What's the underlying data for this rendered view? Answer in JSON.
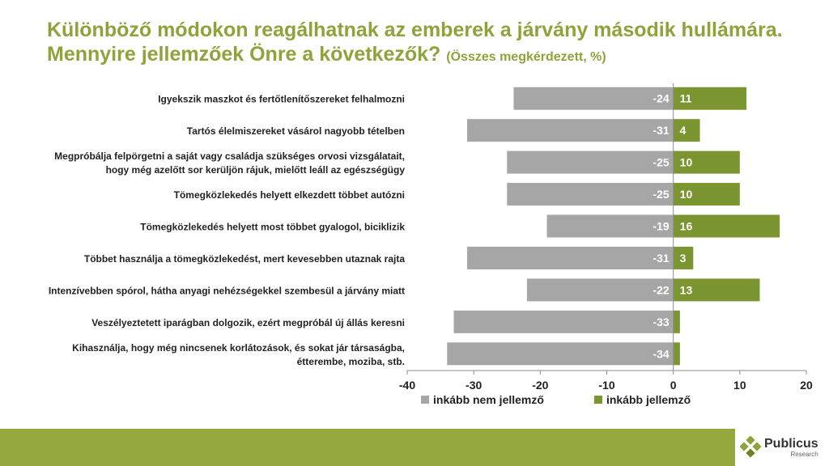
{
  "title": {
    "line1": "Különböző módokon reagálhatnak az emberek a járvány második hullámára.",
    "line2": "Mennyire jellemzőek Önre a következők?",
    "subtitle": "(Összes megkérdezett, %)"
  },
  "colors": {
    "title": "#8ea33a",
    "negative": "#a6a6a6",
    "positive": "#7b9530",
    "footer": "#94a83e"
  },
  "chart_data": {
    "type": "bar",
    "orientation": "horizontal",
    "stacked": "diverging",
    "categories": [
      [
        "Igyekszik maszkot és fertőtlenítőszereket felhalmozni"
      ],
      [
        "Tartós élelmiszereket vásárol nagyobb tételben"
      ],
      [
        "Megpróbálja felpörgetni a saját vagy családja szükséges orvosi vizsgálatait,",
        "hogy még azelőtt sor kerüljön rájuk, mielőtt leáll az egészségügy"
      ],
      [
        "Tömegközlekedés helyett elkezdett többet autózni"
      ],
      [
        "Tömegközlekedés helyett most többet gyalogol, biciklizik"
      ],
      [
        "Többet használja a tömegközlekedést, mert kevesebben utaznak rajta"
      ],
      [
        "Intenzívebben spórol, hátha anyagi nehézségekkel szembesül a járvány miatt"
      ],
      [
        "Veszélyeztetett iparágban dolgozik, ezért megpróbál új állás keresni"
      ],
      [
        "Kihasználja, hogy még nincsenek korlátozások, és sokat jár társaságba,",
        "étterembe, moziba, stb."
      ]
    ],
    "series": [
      {
        "name": "inkább nem jellemző",
        "values": [
          -24,
          -31,
          -25,
          -25,
          -19,
          -31,
          -22,
          -33,
          -34
        ],
        "labels": [
          "-24",
          "-31",
          "-25",
          "-25",
          "-19",
          "-31",
          "-22",
          "-33",
          "-34"
        ]
      },
      {
        "name": "inkább jellemző",
        "values": [
          11,
          4,
          10,
          10,
          16,
          3,
          13,
          1,
          1
        ],
        "labels": [
          "11",
          "4",
          "10",
          "10",
          "16",
          "3",
          "13",
          "",
          ""
        ]
      }
    ],
    "xlim": [
      -40,
      20
    ],
    "xticks": [
      "-40",
      "-30",
      "-20",
      "-10",
      "0",
      "10",
      "20"
    ],
    "legend_position": "bottom",
    "grid": false
  },
  "logo": {
    "name": "Publicus",
    "sub": "Research"
  }
}
